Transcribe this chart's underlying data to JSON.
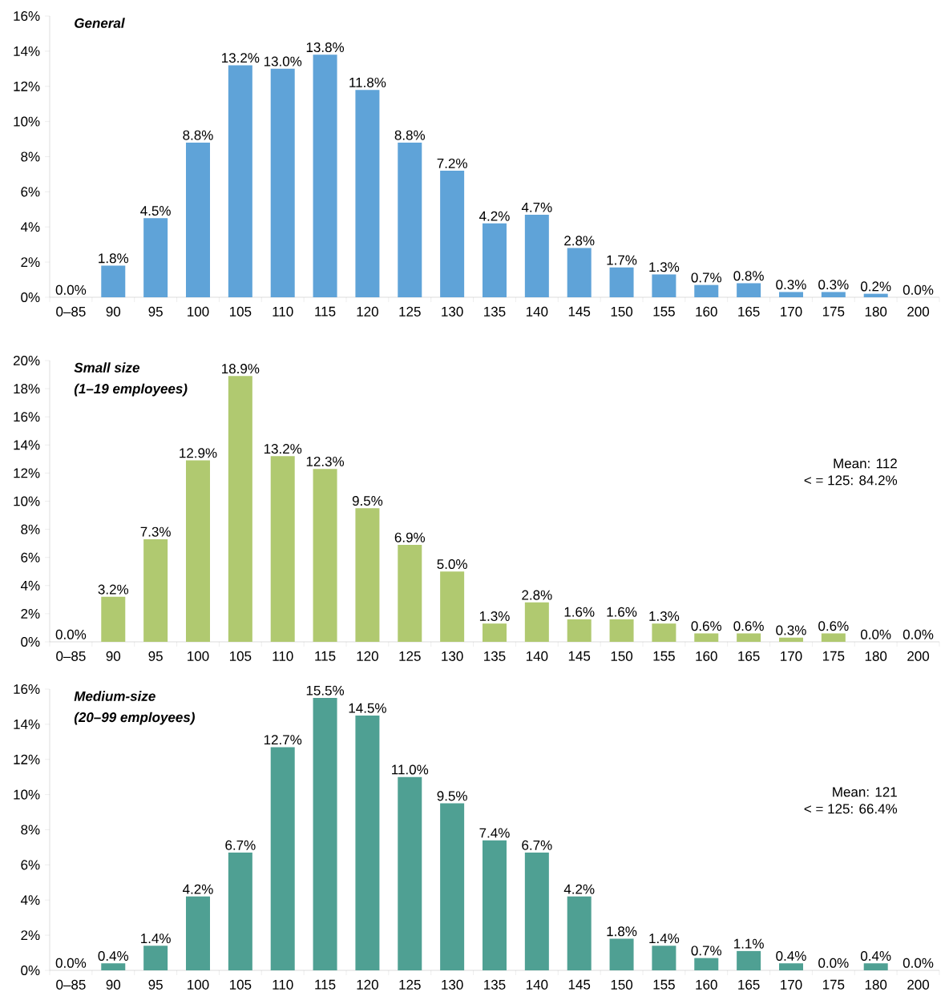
{
  "chart_data": [
    {
      "type": "bar",
      "title": "General",
      "color": "#5fa3d8",
      "categories": [
        "0–85",
        "90",
        "95",
        "100",
        "105",
        "110",
        "115",
        "120",
        "125",
        "130",
        "135",
        "140",
        "145",
        "150",
        "155",
        "160",
        "165",
        "170",
        "175",
        "180",
        "200"
      ],
      "values": [
        0,
        1.8,
        4.5,
        8.8,
        13.2,
        13.0,
        13.8,
        11.8,
        8.8,
        7.2,
        4.2,
        4.7,
        2.8,
        1.7,
        1.3,
        0.7,
        0.8,
        0.3,
        0.3,
        0.2,
        0.0
      ],
      "value_labels": [
        "0.0%",
        "1.8%",
        "4.5%",
        "8.8%",
        "13.2%",
        "13.0%",
        "13.8%",
        "11.8%",
        "8.8%",
        "7.2%",
        "4.2%",
        "4.7%",
        "2.8%",
        "1.7%",
        "1.3%",
        "0.7%",
        "0.8%",
        "0.3%",
        "0.3%",
        "0.2%",
        "0.0%"
      ],
      "ylim": [
        0,
        16
      ],
      "yticks": [
        {
          "value": 0,
          "label": "0%"
        },
        {
          "value": 2,
          "label": "2%"
        },
        {
          "value": 4,
          "label": "4%"
        },
        {
          "value": 6,
          "label": "6%"
        },
        {
          "value": 8,
          "label": "8%"
        },
        {
          "value": 10,
          "label": "10%"
        },
        {
          "value": 12,
          "label": "12%"
        },
        {
          "value": 14,
          "label": "14%"
        },
        {
          "value": 16,
          "label": "16%"
        }
      ]
    },
    {
      "type": "bar",
      "title": "Small size",
      "subtitle": "(1–19 employees)",
      "color": "#b0c970",
      "categories": [
        "0–85",
        "90",
        "95",
        "100",
        "105",
        "110",
        "115",
        "120",
        "125",
        "130",
        "135",
        "140",
        "145",
        "150",
        "155",
        "160",
        "165",
        "170",
        "175",
        "180",
        "200"
      ],
      "values": [
        0,
        3.2,
        7.3,
        12.9,
        18.9,
        13.2,
        12.3,
        9.5,
        6.9,
        5.0,
        1.3,
        2.8,
        1.6,
        1.6,
        1.3,
        0.6,
        0.6,
        0.3,
        0.6,
        0.0,
        0.0
      ],
      "value_labels": [
        "0.0%",
        "3.2%",
        "7.3%",
        "12.9%",
        "18.9%",
        "13.2%",
        "12.3%",
        "9.5%",
        "6.9%",
        "5.0%",
        "1.3%",
        "2.8%",
        "1.6%",
        "1.6%",
        "1.3%",
        "0.6%",
        "0.6%",
        "0.3%",
        "0.6%",
        "0.0%",
        "0.0%"
      ],
      "ylim": [
        0,
        20
      ],
      "yticks": [
        {
          "value": 0,
          "label": "0%"
        },
        {
          "value": 2,
          "label": "2%"
        },
        {
          "value": 4,
          "label": "4%"
        },
        {
          "value": 6,
          "label": "6%"
        },
        {
          "value": 8,
          "label": "8%"
        },
        {
          "value": 10,
          "label": "10%"
        },
        {
          "value": 12,
          "label": "12%"
        },
        {
          "value": 14,
          "label": "14%"
        },
        {
          "value": 16,
          "label": "16%"
        },
        {
          "value": 18,
          "label": "18%"
        },
        {
          "value": 20,
          "label": "20%"
        }
      ],
      "annotations": [
        "Mean: 112",
        "< = 125: 84.2%"
      ]
    },
    {
      "type": "bar",
      "title": "Medium-size",
      "subtitle": "(20–99 employees)",
      "color": "#4fa093",
      "categories": [
        "0–85",
        "90",
        "95",
        "100",
        "105",
        "110",
        "115",
        "120",
        "125",
        "130",
        "135",
        "140",
        "145",
        "150",
        "155",
        "160",
        "165",
        "170",
        "175",
        "180",
        "200"
      ],
      "values": [
        0,
        0.4,
        1.4,
        4.2,
        6.7,
        12.7,
        15.5,
        14.5,
        11.0,
        9.5,
        7.4,
        6.7,
        4.2,
        1.8,
        1.4,
        0.7,
        1.1,
        0.4,
        0.0,
        0.4,
        0.0
      ],
      "value_labels": [
        "0.0%",
        "0.4%",
        "1.4%",
        "4.2%",
        "6.7%",
        "12.7%",
        "15.5%",
        "14.5%",
        "11.0%",
        "9.5%",
        "7.4%",
        "6.7%",
        "4.2%",
        "1.8%",
        "1.4%",
        "0.7%",
        "1.1%",
        "0.4%",
        "0.0%",
        "0.4%",
        "0.0%"
      ],
      "ylim": [
        0,
        16
      ],
      "yticks": [
        {
          "value": 0,
          "label": "0%"
        },
        {
          "value": 2,
          "label": "2%"
        },
        {
          "value": 4,
          "label": "4%"
        },
        {
          "value": 6,
          "label": "6%"
        },
        {
          "value": 8,
          "label": "8%"
        },
        {
          "value": 10,
          "label": "10%"
        },
        {
          "value": 12,
          "label": "12%"
        },
        {
          "value": 14,
          "label": "14%"
        },
        {
          "value": 16,
          "label": "16%"
        }
      ],
      "annotations": [
        "Mean: 121",
        "< = 125: 66.4%"
      ]
    }
  ]
}
